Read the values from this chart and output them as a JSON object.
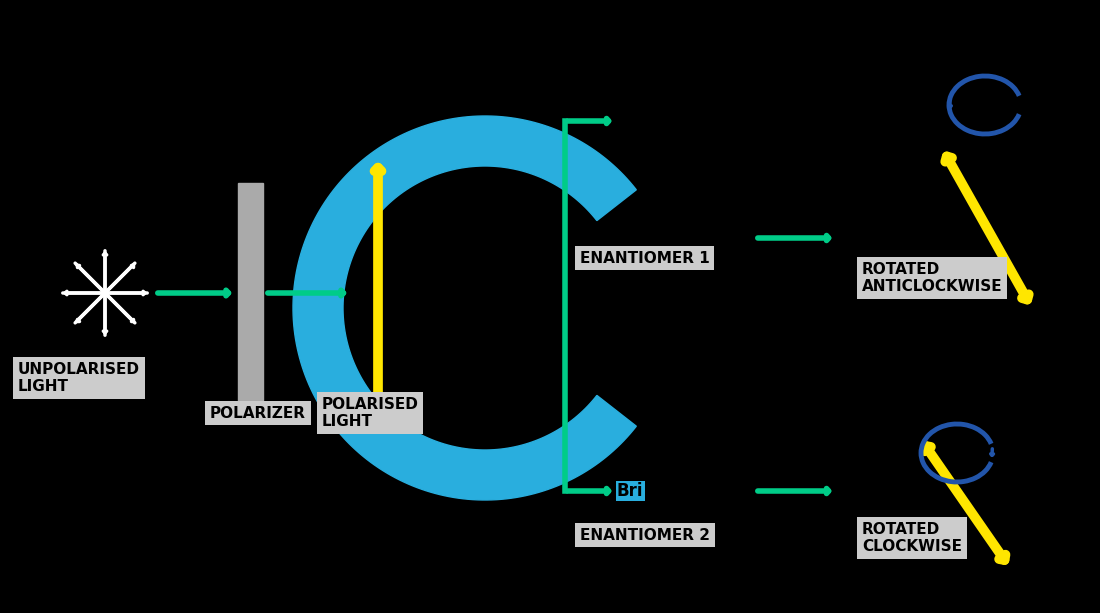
{
  "bg_color": "#000000",
  "green_color": "#00CC88",
  "yellow_color": "#FFE600",
  "blue_color": "#29AEDE",
  "white_color": "#FFFFFF",
  "gray_color": "#AAAAAA",
  "dark_blue_color": "#2255AA",
  "label_bg": "#CCCCCC",
  "unpolarised_label": "UNPOLARISED\nLIGHT",
  "polarizer_label": "POLARIZER",
  "polarised_label": "POLARISED\nLIGHT",
  "enantiomer1_label": "ENANTIOMER 1",
  "enantiomer2_label": "ENANTIOMER 2",
  "rotated_anti_label": "ROTATED\nANTICLOCKWISE",
  "rotated_clock_label": "ROTATED\nCLOCKWISE",
  "brine_label": "Bri",
  "font_size_labels": 11,
  "font_size_box": 11
}
